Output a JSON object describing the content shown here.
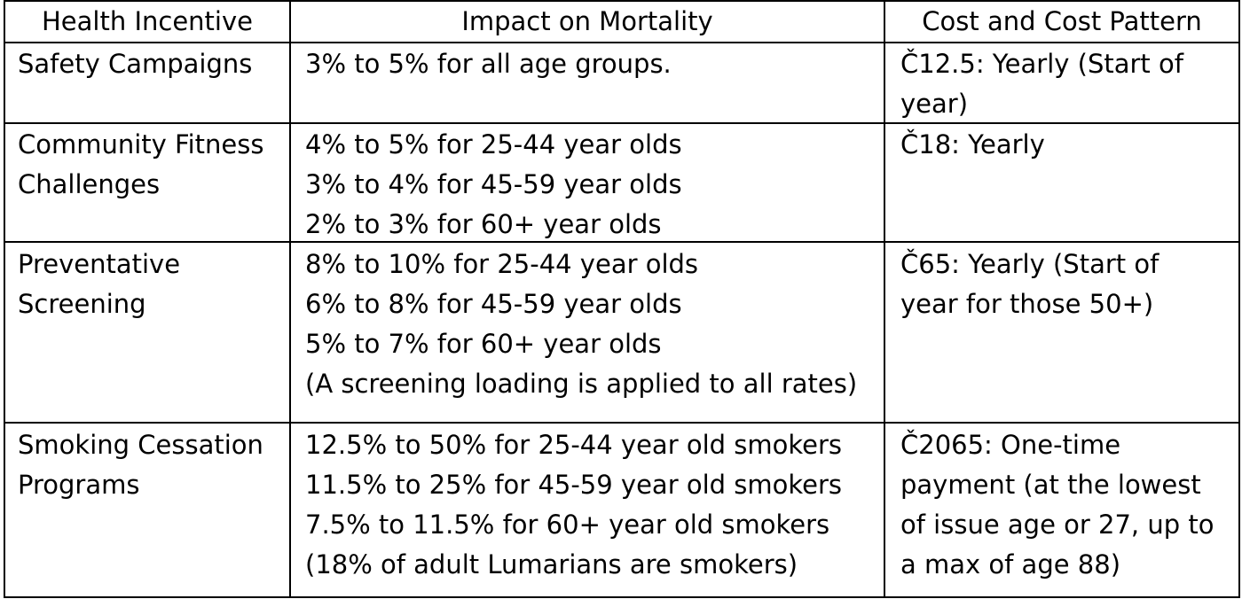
{
  "header": {
    "col1": "Health Incentive",
    "col2": "Impact on Mortality",
    "col3": "Cost and Cost Pattern"
  },
  "rows": [
    {
      "incentive": [
        "Safety Campaigns"
      ],
      "impact": [
        "3% to 5% for all age groups."
      ],
      "cost": [
        "Č12.5: Yearly (Start of",
        "year)"
      ]
    },
    {
      "incentive": [
        "Community Fitness",
        "Challenges"
      ],
      "impact": [
        "4% to 5% for 25-44 year olds",
        "3% to 4% for 45-59 year olds",
        "2% to 3% for 60+ year olds"
      ],
      "cost": [
        "Č18: Yearly"
      ]
    },
    {
      "incentive": [
        "Preventative",
        "Screening"
      ],
      "impact": [
        "8% to 10% for 25-44 year olds",
        "6% to 8% for 45-59 year olds",
        "5% to 7% for 60+ year olds",
        "(A screening loading is applied to all rates)"
      ],
      "cost": [
        "Č65: Yearly (Start of",
        "year for those 50+)"
      ]
    },
    {
      "incentive": [
        "Smoking Cessation",
        "Programs"
      ],
      "impact": [
        "12.5% to 50% for 25-44 year old smokers",
        "11.5% to 25% for 45-59 year  old smokers",
        "7.5% to 11.5% for 60+ year old smokers",
        "(18% of adult Lumarians are smokers)"
      ],
      "cost": [
        "Č2065: One-time",
        "payment (at the lowest",
        "of issue age or 27, up to",
        "a max of age 88)"
      ]
    }
  ]
}
